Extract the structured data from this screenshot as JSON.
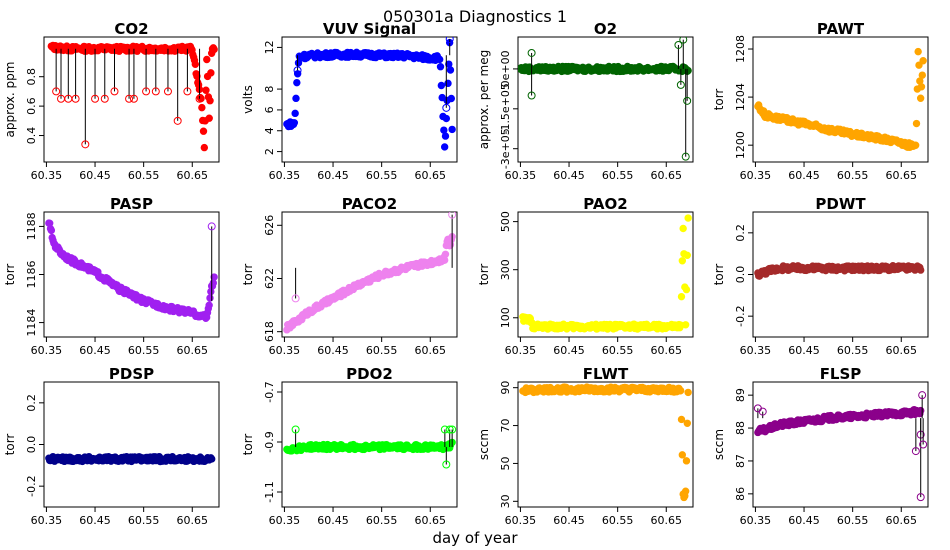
{
  "figure": {
    "title": "050301a   Diagnostics 1",
    "xlabel": "day of year"
  },
  "chart_data": [
    {
      "type": "scatter",
      "title": "CO2",
      "ylabel": "approx. ppm",
      "color": "#ff0000",
      "xlim": [
        60.345,
        60.705
      ],
      "ylim": [
        0.22,
        1.07
      ],
      "xticks": [
        60.35,
        60.45,
        60.55,
        60.65
      ],
      "xticklabels": [
        "60.35",
        "60.45",
        "60.55",
        "60.65"
      ],
      "yticks": [
        0.4,
        0.6,
        0.8
      ],
      "yticklabels": [
        "0.4",
        "0.6",
        "0.8"
      ],
      "x": [
        60.36,
        60.4,
        60.45,
        60.5,
        60.55,
        60.6,
        60.65,
        60.67,
        60.675,
        60.68,
        60.685,
        60.69,
        60.695
      ],
      "y": [
        1.0,
        0.99,
        0.99,
        0.99,
        0.99,
        0.99,
        0.99,
        0.6,
        0.3,
        0.95,
        0.5,
        0.98,
        0.99
      ],
      "outliers": [
        [
          60.37,
          0.7
        ],
        [
          60.38,
          0.65
        ],
        [
          60.395,
          0.65
        ],
        [
          60.41,
          0.65
        ],
        [
          60.43,
          0.34
        ],
        [
          60.45,
          0.65
        ],
        [
          60.47,
          0.65
        ],
        [
          60.49,
          0.7
        ],
        [
          60.52,
          0.65
        ],
        [
          60.53,
          0.65
        ],
        [
          60.555,
          0.7
        ],
        [
          60.575,
          0.7
        ],
        [
          60.6,
          0.7
        ],
        [
          60.62,
          0.5
        ],
        [
          60.64,
          0.7
        ],
        [
          60.665,
          0.65
        ]
      ]
    },
    {
      "type": "scatter",
      "title": "VUV Signal",
      "ylabel": "volts",
      "color": "#0000ff",
      "xlim": [
        60.345,
        60.705
      ],
      "ylim": [
        1.0,
        13.0
      ],
      "xticks": [
        60.35,
        60.45,
        60.55,
        60.65
      ],
      "xticklabels": [
        "60.35",
        "60.45",
        "60.55",
        "60.65"
      ],
      "yticks": [
        2,
        4,
        6,
        8,
        12
      ],
      "yticklabels": [
        "2",
        "4",
        "6",
        "8",
        "12"
      ],
      "x": [
        60.355,
        60.37,
        60.371,
        60.375,
        60.38,
        60.4,
        60.45,
        60.5,
        60.55,
        60.6,
        60.65,
        60.67,
        60.68,
        60.685,
        60.69,
        60.695
      ],
      "y": [
        4.6,
        4.7,
        4.8,
        8.2,
        11.1,
        11.2,
        11.3,
        11.3,
        11.25,
        11.2,
        11.0,
        11.0,
        2.0,
        7.0,
        12.5,
        4.0
      ],
      "outliers": [
        [
          60.377,
          9.8
        ],
        [
          60.683,
          6.2
        ],
        [
          60.69,
          12.8
        ]
      ]
    },
    {
      "type": "scatter",
      "title": "O2",
      "ylabel": "approx. per meg",
      "color": "#006400",
      "xlim": [
        60.345,
        60.705
      ],
      "ylim": [
        -350000,
        120000
      ],
      "xticks": [
        60.35,
        60.45,
        60.55,
        60.65
      ],
      "xticklabels": [
        "60.35",
        "60.45",
        "60.55",
        "60.65"
      ],
      "yticks": [
        -300000,
        -150000,
        0
      ],
      "yticklabels": [
        "-3e+05",
        "-1.5e+05",
        "0e+00"
      ],
      "x": [
        60.35,
        60.4,
        60.45,
        60.5,
        60.55,
        60.6,
        60.65,
        60.67,
        60.68,
        60.69,
        60.695
      ],
      "y": [
        0,
        0,
        0,
        0,
        0,
        0,
        0,
        0,
        0,
        0,
        0
      ],
      "outliers": [
        [
          60.373,
          60000
        ],
        [
          60.373,
          -100000
        ],
        [
          60.675,
          90000
        ],
        [
          60.68,
          -60000
        ],
        [
          60.685,
          110000
        ],
        [
          60.69,
          -330000
        ],
        [
          60.693,
          -120000
        ]
      ]
    },
    {
      "type": "scatter",
      "title": "PAWT",
      "ylabel": "torr",
      "color": "#ffa500",
      "xlim": [
        60.345,
        60.705
      ],
      "ylim": [
        1198.6,
        1209.0
      ],
      "xticks": [
        60.35,
        60.45,
        60.55,
        60.65
      ],
      "xticklabels": [
        "60.35",
        "60.45",
        "60.55",
        "60.65"
      ],
      "yticks": [
        1200,
        1204,
        1208
      ],
      "yticklabels": [
        "1200",
        "1204",
        "1208"
      ],
      "x": [
        60.355,
        60.37,
        60.4,
        60.45,
        60.5,
        60.55,
        60.6,
        60.65,
        60.68,
        60.685,
        60.69,
        60.695
      ],
      "y": [
        1203.3,
        1202.5,
        1202.2,
        1201.8,
        1201.3,
        1200.9,
        1200.6,
        1200.2,
        1199.8,
        1208.0,
        1204.0,
        1207.0
      ],
      "outliers": []
    },
    {
      "type": "scatter",
      "title": "PASP",
      "ylabel": "torr",
      "color": "#a020f0",
      "xlim": [
        60.345,
        60.705
      ],
      "ylim": [
        1183.4,
        1188.6
      ],
      "xticks": [
        60.35,
        60.45,
        60.55,
        60.65
      ],
      "xticklabels": [
        "60.35",
        "60.45",
        "60.55",
        "60.65"
      ],
      "yticks": [
        1184,
        1186,
        1188
      ],
      "yticklabels": [
        "1184",
        "1186",
        "1188"
      ],
      "x": [
        60.355,
        60.365,
        60.38,
        60.4,
        60.45,
        60.5,
        60.55,
        60.6,
        60.65,
        60.68,
        60.69,
        60.695
      ],
      "y": [
        1188.2,
        1187.3,
        1186.9,
        1186.6,
        1186.1,
        1185.4,
        1184.9,
        1184.6,
        1184.4,
        1184.2,
        1185.5,
        1185.8
      ],
      "outliers": [
        [
          60.69,
          1188.0
        ]
      ]
    },
    {
      "type": "scatter",
      "title": "PACO2",
      "ylabel": "torr",
      "color": "#ee82ee",
      "xlim": [
        60.345,
        60.705
      ],
      "ylim": [
        617.6,
        627.0
      ],
      "xticks": [
        60.35,
        60.45,
        60.55,
        60.65
      ],
      "xticklabels": [
        "60.35",
        "60.45",
        "60.55",
        "60.65"
      ],
      "yticks": [
        618,
        622,
        626
      ],
      "yticklabels": [
        "618",
        "622",
        "626"
      ],
      "x": [
        60.355,
        60.38,
        60.4,
        60.45,
        60.5,
        60.55,
        60.6,
        60.65,
        60.68,
        60.685,
        60.69,
        60.695
      ],
      "y": [
        618.3,
        618.9,
        619.5,
        620.5,
        621.5,
        622.3,
        622.8,
        623.2,
        623.5,
        625.0,
        624.5,
        625.2
      ],
      "outliers": [
        [
          60.373,
          620.5
        ],
        [
          60.695,
          626.8
        ]
      ]
    },
    {
      "type": "scatter",
      "title": "PAO2",
      "ylabel": "torr",
      "color": "#ffff00",
      "xlim": [
        60.345,
        60.705
      ],
      "ylim": [
        20,
        540
      ],
      "xticks": [
        60.35,
        60.45,
        60.55,
        60.65
      ],
      "xticklabels": [
        "60.35",
        "60.45",
        "60.55",
        "60.65"
      ],
      "yticks": [
        100,
        300,
        500
      ],
      "yticklabels": [
        "100",
        "300",
        "500"
      ],
      "x": [
        60.355,
        60.37,
        60.375,
        60.4,
        60.45,
        60.5,
        60.55,
        60.6,
        60.65,
        60.68,
        60.685,
        60.69,
        60.695
      ],
      "y": [
        95,
        92,
        65,
        63,
        63,
        63,
        63,
        63,
        63,
        63,
        500,
        70,
        510
      ],
      "outliers": []
    },
    {
      "type": "scatter",
      "title": "PDWT",
      "ylabel": "torr",
      "color": "#a52a2a",
      "xlim": [
        60.345,
        60.705
      ],
      "ylim": [
        -0.3,
        0.3
      ],
      "xticks": [
        60.35,
        60.45,
        60.55,
        60.65
      ],
      "xticklabels": [
        "60.35",
        "60.45",
        "60.55",
        "60.65"
      ],
      "yticks": [
        -0.2,
        0.0,
        0.2
      ],
      "yticklabels": [
        "-0.2",
        "0.0",
        "0.2"
      ],
      "x": [
        60.355,
        60.38,
        60.4,
        60.45,
        60.5,
        60.55,
        60.6,
        60.65,
        60.69
      ],
      "y": [
        0.0,
        0.02,
        0.03,
        0.03,
        0.03,
        0.03,
        0.03,
        0.03,
        0.03
      ],
      "outliers": []
    },
    {
      "type": "scatter",
      "title": "PDSP",
      "ylabel": "torr",
      "color": "#00008b",
      "xlim": [
        60.345,
        60.705
      ],
      "ylim": [
        -0.3,
        0.3
      ],
      "xticks": [
        60.35,
        60.45,
        60.55,
        60.65
      ],
      "xticklabels": [
        "60.35",
        "60.45",
        "60.55",
        "60.65"
      ],
      "yticks": [
        -0.2,
        0.0,
        0.2
      ],
      "yticklabels": [
        "-0.2",
        "0.0",
        "0.2"
      ],
      "x": [
        60.355,
        60.4,
        60.45,
        60.5,
        60.55,
        60.6,
        60.65,
        60.69
      ],
      "y": [
        -0.07,
        -0.07,
        -0.07,
        -0.07,
        -0.07,
        -0.07,
        -0.07,
        -0.07
      ],
      "outliers": []
    },
    {
      "type": "scatter",
      "title": "PDO2",
      "ylabel": "torr",
      "color": "#00ff00",
      "xlim": [
        60.345,
        60.705
      ],
      "ylim": [
        -1.16,
        -0.66
      ],
      "xticks": [
        60.35,
        60.45,
        60.55,
        60.65
      ],
      "xticklabels": [
        "60.35",
        "60.45",
        "60.55",
        "60.65"
      ],
      "yticks": [
        -1.1,
        -0.9,
        -0.7
      ],
      "yticklabels": [
        "-1.1",
        "-0.9",
        "-0.7"
      ],
      "x": [
        60.355,
        60.4,
        60.45,
        60.5,
        60.55,
        60.6,
        60.65,
        60.68,
        60.695
      ],
      "y": [
        -0.93,
        -0.92,
        -0.92,
        -0.92,
        -0.92,
        -0.92,
        -0.92,
        -0.92,
        -0.91
      ],
      "outliers": [
        [
          60.373,
          -0.85
        ],
        [
          60.68,
          -0.85
        ],
        [
          60.683,
          -0.99
        ],
        [
          60.69,
          -0.85
        ],
        [
          60.695,
          -0.85
        ]
      ]
    },
    {
      "type": "scatter",
      "title": "FLWT",
      "ylabel": "sccm",
      "color": "#ffa500",
      "xlim": [
        60.345,
        60.705
      ],
      "ylim": [
        27,
        93
      ],
      "xticks": [
        60.35,
        60.45,
        60.55,
        60.65
      ],
      "xticklabels": [
        "60.35",
        "60.45",
        "60.55",
        "60.65"
      ],
      "yticks": [
        30,
        50,
        70,
        90
      ],
      "yticklabels": [
        "30",
        "50",
        "70",
        "90"
      ],
      "x": [
        60.355,
        60.4,
        60.45,
        60.5,
        60.55,
        60.6,
        60.65,
        60.68,
        60.685,
        60.69,
        60.695
      ],
      "y": [
        88.5,
        89,
        89,
        89,
        89,
        89,
        89,
        89,
        31,
        35,
        88
      ],
      "outliers": []
    },
    {
      "type": "scatter",
      "title": "FLSP",
      "ylabel": "sccm",
      "color": "#8b008b",
      "xlim": [
        60.345,
        60.705
      ],
      "ylim": [
        85.6,
        89.4
      ],
      "xticks": [
        60.35,
        60.45,
        60.55,
        60.65
      ],
      "xticklabels": [
        "60.35",
        "60.45",
        "60.55",
        "60.65"
      ],
      "yticks": [
        86,
        87,
        88,
        89
      ],
      "yticklabels": [
        "86",
        "87",
        "88",
        "89"
      ],
      "x": [
        60.355,
        60.37,
        60.4,
        60.45,
        60.5,
        60.55,
        60.6,
        60.65,
        60.69
      ],
      "y": [
        87.9,
        87.95,
        88.1,
        88.2,
        88.3,
        88.35,
        88.4,
        88.45,
        88.5
      ],
      "outliers": [
        [
          60.355,
          88.6
        ],
        [
          60.365,
          88.5
        ],
        [
          60.68,
          87.3
        ],
        [
          60.69,
          87.8
        ],
        [
          60.69,
          85.9
        ],
        [
          60.693,
          89.0
        ],
        [
          60.695,
          87.5
        ]
      ]
    }
  ]
}
